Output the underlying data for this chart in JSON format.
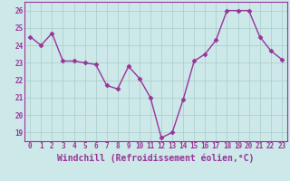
{
  "x": [
    0,
    1,
    2,
    3,
    4,
    5,
    6,
    7,
    8,
    9,
    10,
    11,
    12,
    13,
    14,
    15,
    16,
    17,
    18,
    19,
    20,
    21,
    22,
    23
  ],
  "y": [
    24.5,
    24.0,
    24.7,
    23.1,
    23.1,
    23.0,
    22.9,
    21.7,
    21.5,
    22.8,
    22.1,
    21.0,
    18.7,
    19.0,
    20.9,
    23.1,
    23.5,
    24.3,
    26.0,
    26.0,
    26.0,
    24.5,
    23.7,
    23.2
  ],
  "line_color": "#993399",
  "marker": "D",
  "marker_size": 2.5,
  "bg_color": "#cce8e8",
  "grid_color": "#aacccc",
  "xlabel": "Windchill (Refroidissement éolien,°C)",
  "ylim": [
    18.5,
    26.5
  ],
  "yticks": [
    19,
    20,
    21,
    22,
    23,
    24,
    25,
    26
  ],
  "xticks": [
    0,
    1,
    2,
    3,
    4,
    5,
    6,
    7,
    8,
    9,
    10,
    11,
    12,
    13,
    14,
    15,
    16,
    17,
    18,
    19,
    20,
    21,
    22,
    23
  ],
  "tick_color": "#993399",
  "label_color": "#993399",
  "tick_fontsize": 5.5,
  "xlabel_fontsize": 7.0,
  "linewidth": 1.0
}
